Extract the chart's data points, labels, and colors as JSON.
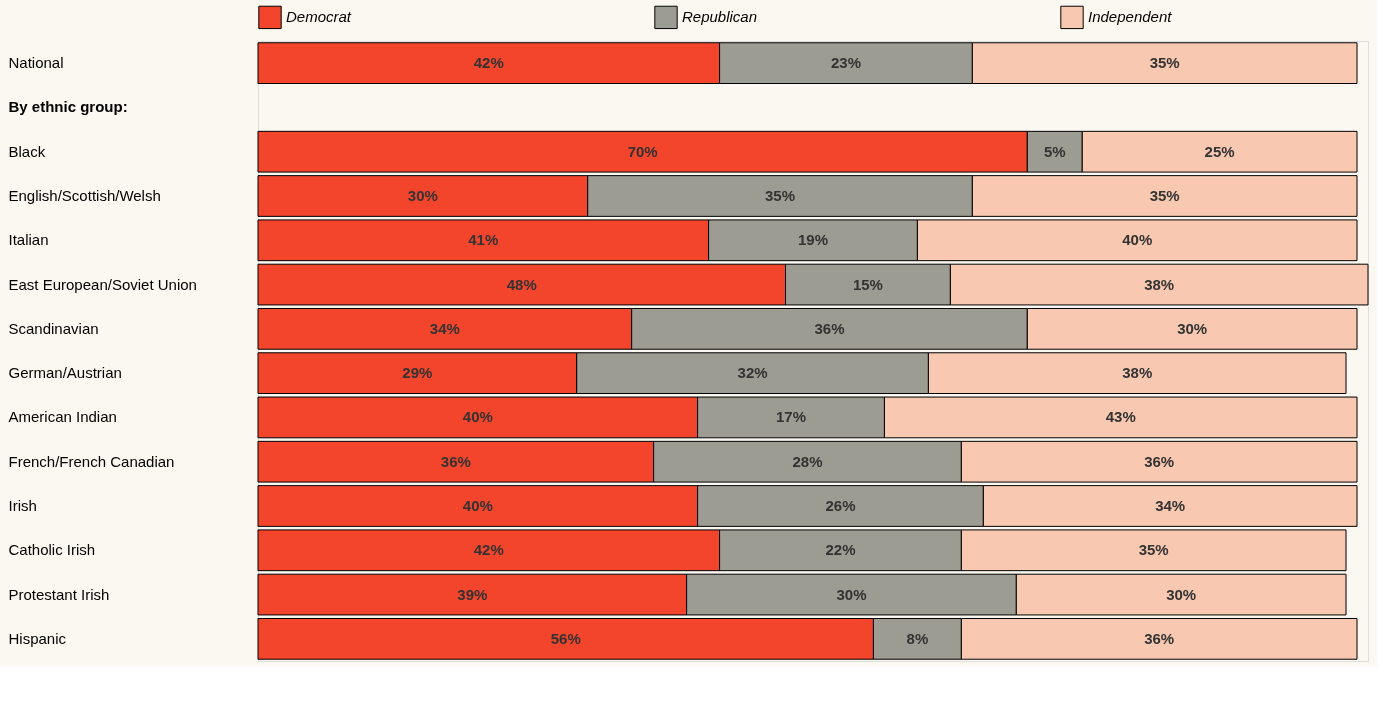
{
  "chart_data": {
    "type": "bar",
    "orientation": "horizontal",
    "stacked": true,
    "legend": "top",
    "tick_labels": "y",
    "xlim": [
      0,
      101
    ],
    "annotations": [
      "By ethnic group:"
    ],
    "categories": [
      "National",
      null,
      "Black",
      "English/Scottish/Welsh",
      "Italian",
      "East European/Soviet Union",
      "Scandinavian",
      "German/Austrian",
      "American Indian",
      "French/French Canadian",
      "Irish",
      "Catholic Irish",
      "Protestant Irish",
      "Hispanic"
    ],
    "series": [
      {
        "name": "Democrat",
        "color": "#f2452c",
        "values": [
          42,
          null,
          70,
          30,
          41,
          48,
          34,
          29,
          40,
          36,
          40,
          42,
          39,
          56
        ],
        "value_labels": [
          "42%",
          null,
          "70%",
          "30%",
          "41%",
          "48%",
          "34%",
          "29%",
          "40%",
          "36%",
          "40%",
          "42%",
          "39%",
          "56%"
        ]
      },
      {
        "name": "Republican",
        "color": "#9c9c92",
        "values": [
          23,
          null,
          5,
          35,
          19,
          15,
          36,
          32,
          17,
          28,
          26,
          22,
          30,
          8
        ],
        "value_labels": [
          "23%",
          null,
          "5%",
          "35%",
          "19%",
          "15%",
          "36%",
          "32%",
          "17%",
          "28%",
          "26%",
          "22%",
          "30%",
          "8%"
        ]
      },
      {
        "name": "Independent",
        "color": "#f8c8b0",
        "values": [
          35,
          null,
          25,
          35,
          40,
          38,
          30,
          38,
          43,
          36,
          34,
          35,
          30,
          36
        ],
        "value_labels": [
          "35%",
          null,
          "25%",
          "35%",
          "40%",
          "38%",
          "30%",
          "38%",
          "43%",
          "36%",
          "34%",
          "35%",
          "30%",
          "36%"
        ]
      }
    ]
  }
}
